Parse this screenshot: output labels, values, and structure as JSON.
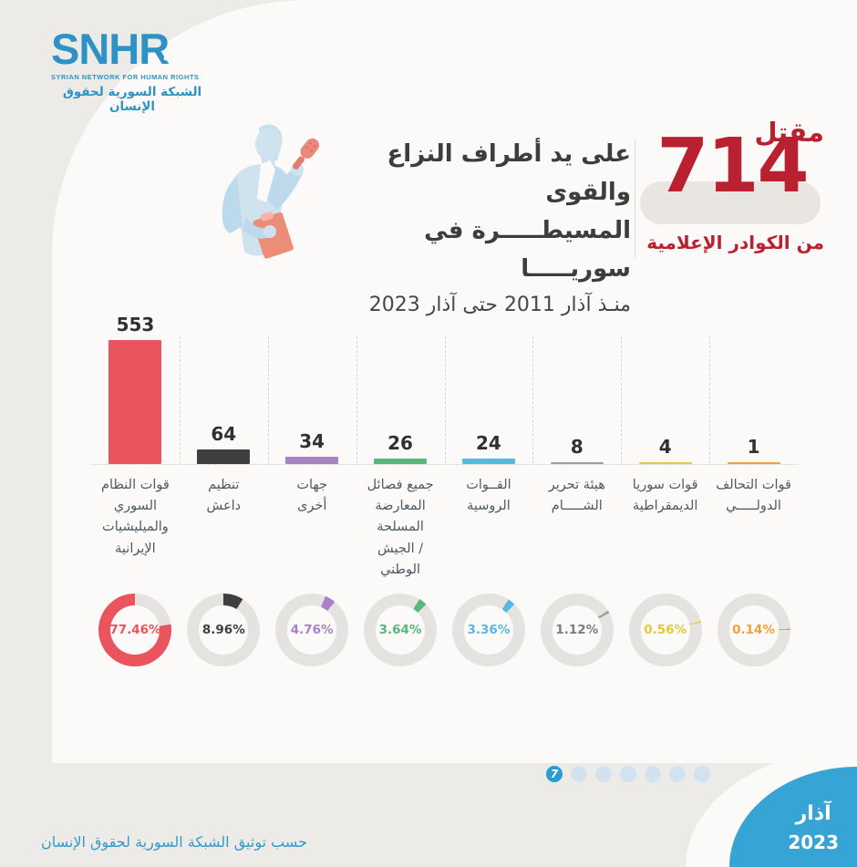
{
  "logo": {
    "acronym": "SNHR",
    "line_en": "SYRIAN NETWORK FOR HUMAN RIGHTS",
    "line_ar": "الشبكة السورية لحقوق الإنسان",
    "color": "#2e93c4"
  },
  "illustration": "journalist-with-microphone",
  "header": {
    "title_line1": "على يد أطراف النزاع والقوى",
    "title_line2": "المسيطـــــرة في سوريـــــا",
    "title_line3": "منـذ آذار 2011 حتى آذار 2023",
    "stat": {
      "label_top": "مقتل",
      "value": "714",
      "label_bottom": "من الكوادر الإعلامية",
      "color": "#ba2130"
    }
  },
  "chart_data": {
    "type": "bar",
    "title": "مقتل 714 من الكوادر الإعلامية على يد أطراف النزاع والقوى المسيطرة في سوريا منذ آذار 2011 حتى آذار 2023",
    "xlabel": "",
    "ylabel": "",
    "ylim": [
      0,
      553
    ],
    "grid": "dashed-column-separators",
    "legend_position": "none",
    "track_color": "#e5e3e0",
    "total": 714,
    "categories": [
      "قوات النظام السوري والميليشيات الإيرانية",
      "تنظيم داعش",
      "جهات أخرى",
      "جميع فصائل المعارضة المسلحة / الجيش الوطني",
      "القــوات الروسية",
      "هيئة تحرير الشـــــام",
      "قوات سوريا الديمقراطية",
      "قوات التحالف الدولـــــي"
    ],
    "series": [
      {
        "name": "قوات النظام السوري والميليشيات الإيرانية",
        "label_lines": [
          "قوات النظام السوري",
          "والميليشيات الإيرانية"
        ],
        "value": 553,
        "percent": 77.46,
        "percent_label": "77.46%",
        "color": "#ea545c",
        "donut_start_deg": 81
      },
      {
        "name": "تنظيم داعش",
        "label_lines": [
          "تنظيم",
          "داعش"
        ],
        "value": 64,
        "percent": 8.96,
        "percent_label": "8.96%",
        "color": "#3f3f3f",
        "donut_start_deg": 0
      },
      {
        "name": "جهات أخرى",
        "label_lines": [
          "جهات",
          "أخرى"
        ],
        "value": 34,
        "percent": 4.76,
        "percent_label": "4.76%",
        "color": "#a981c6",
        "donut_start_deg": 22
      },
      {
        "name": "جميع فصائل المعارضة المسلحة / الجيش الوطني",
        "label_lines": [
          "جميع فصائل",
          "المعارضة المسلحة",
          "/ الجيش الوطني"
        ],
        "value": 26,
        "percent": 3.64,
        "percent_label": "3.64%",
        "color": "#57b77d",
        "donut_start_deg": 32
      },
      {
        "name": "القوات الروسية",
        "label_lines": [
          "القــوات",
          "الروسية"
        ],
        "value": 24,
        "percent": 3.36,
        "percent_label": "3.36%",
        "color": "#57b8e2",
        "donut_start_deg": 33
      },
      {
        "name": "هيئة تحرير الشام",
        "label_lines": [
          "هيئة تحرير",
          "الشـــــام"
        ],
        "value": 8,
        "percent": 1.12,
        "percent_label": "1.12%",
        "color": "#9e9e9e",
        "label_color": "#7d7d7d",
        "donut_start_deg": 58
      },
      {
        "name": "قوات سوريا الديمقراطية",
        "label_lines": [
          "قوات سوريا",
          "الديمقراطية"
        ],
        "value": 4,
        "percent": 0.56,
        "percent_label": "0.56%",
        "color": "#e4c93f",
        "donut_start_deg": 76
      },
      {
        "name": "قوات التحالف الدولي",
        "label_lines": [
          "قوات التحالف",
          "الدولـــــي"
        ],
        "value": 1,
        "percent": 0.14,
        "percent_label": "0.14%",
        "color": "#efa23c",
        "donut_start_deg": 88
      }
    ]
  },
  "pagination": {
    "active_label": "7",
    "dots": 7,
    "active_color": "#2a9cd3",
    "inactive_color": "#d2e3ef"
  },
  "corner": {
    "month": "آذار",
    "year": "2023",
    "color": "#37a4d6"
  },
  "footer": {
    "text": "حسب توثيق الشبكة السورية لحقوق الإنسان"
  }
}
